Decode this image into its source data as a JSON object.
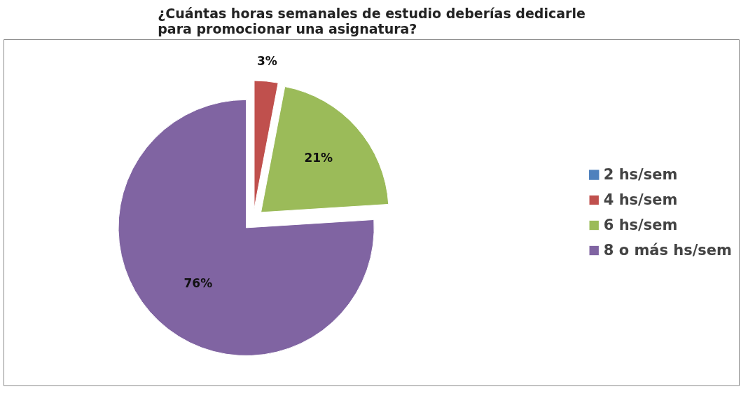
{
  "chart_data": {
    "type": "pie",
    "title": "¿Cuántas horas semanales de estudio deberías dedicarle\npara promocionar una asignatura?",
    "categories": [
      "2 hs/sem",
      "4 hs/sem",
      "6 hs/sem",
      "8 o más hs/sem"
    ],
    "values": [
      0,
      3,
      21,
      76
    ],
    "colors": [
      "#4f81bd",
      "#c0504d",
      "#9bbb59",
      "#8064a2"
    ],
    "value_labels": [
      null,
      "3%",
      "21%",
      "76%"
    ],
    "legend": "right"
  }
}
